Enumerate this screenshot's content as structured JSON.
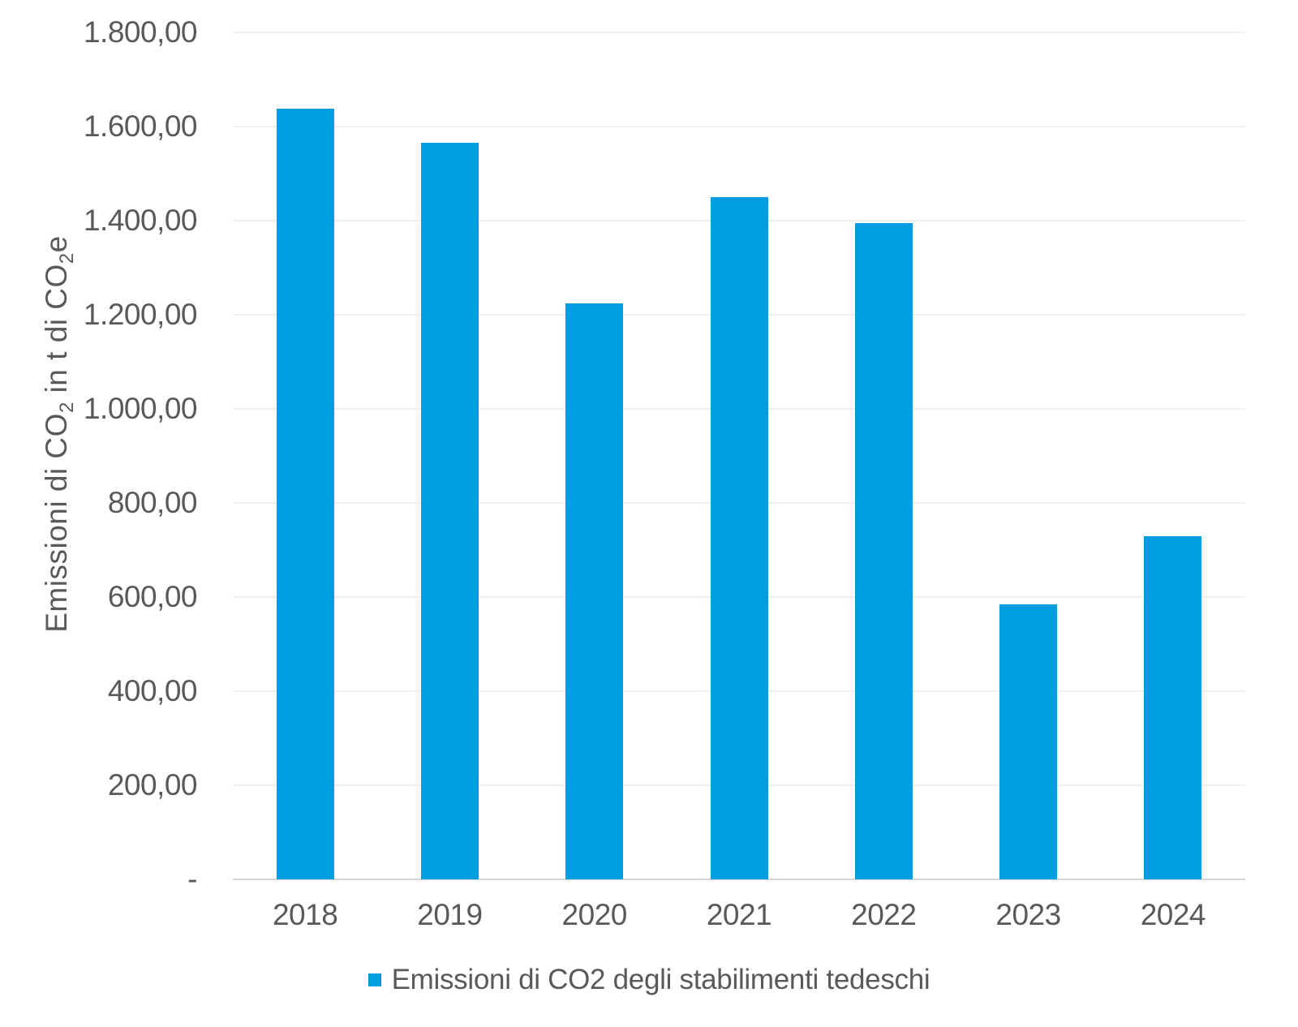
{
  "chart_data": {
    "type": "bar",
    "categories": [
      "2018",
      "2019",
      "2020",
      "2021",
      "2022",
      "2023",
      "2024"
    ],
    "values": [
      1638,
      1566,
      1224,
      1450,
      1394,
      584,
      729
    ],
    "series": [
      {
        "name": "Emissioni di CO2 degli stabilimenti tedeschi",
        "values": [
          1638,
          1566,
          1224,
          1450,
          1394,
          584,
          729
        ]
      }
    ],
    "title": "",
    "xlabel": "",
    "ylabel": {
      "p1": "Emissioni di CO",
      "s1": "2",
      "p2": " in t di CO",
      "s2": "2",
      "p3": "e"
    },
    "yticks": [
      "1.800,00",
      "1.600,00",
      "1.400,00",
      "1.200,00",
      "1.000,00",
      "800,00",
      "600,00",
      "400,00",
      "200,00",
      "-"
    ],
    "ytick_values": [
      1800,
      1600,
      1400,
      1200,
      1000,
      800,
      600,
      400,
      200,
      0
    ],
    "ylim": [
      0,
      1800
    ],
    "grid": "horizontal",
    "legend_position": "bottom",
    "legend_label": "Emissioni di CO2 degli stabilimenti tedeschi",
    "bar_color": "#009EE0",
    "gridline_color": "#efefef",
    "axis_line_color": "#d6d6d6",
    "text_color": "#595959"
  }
}
